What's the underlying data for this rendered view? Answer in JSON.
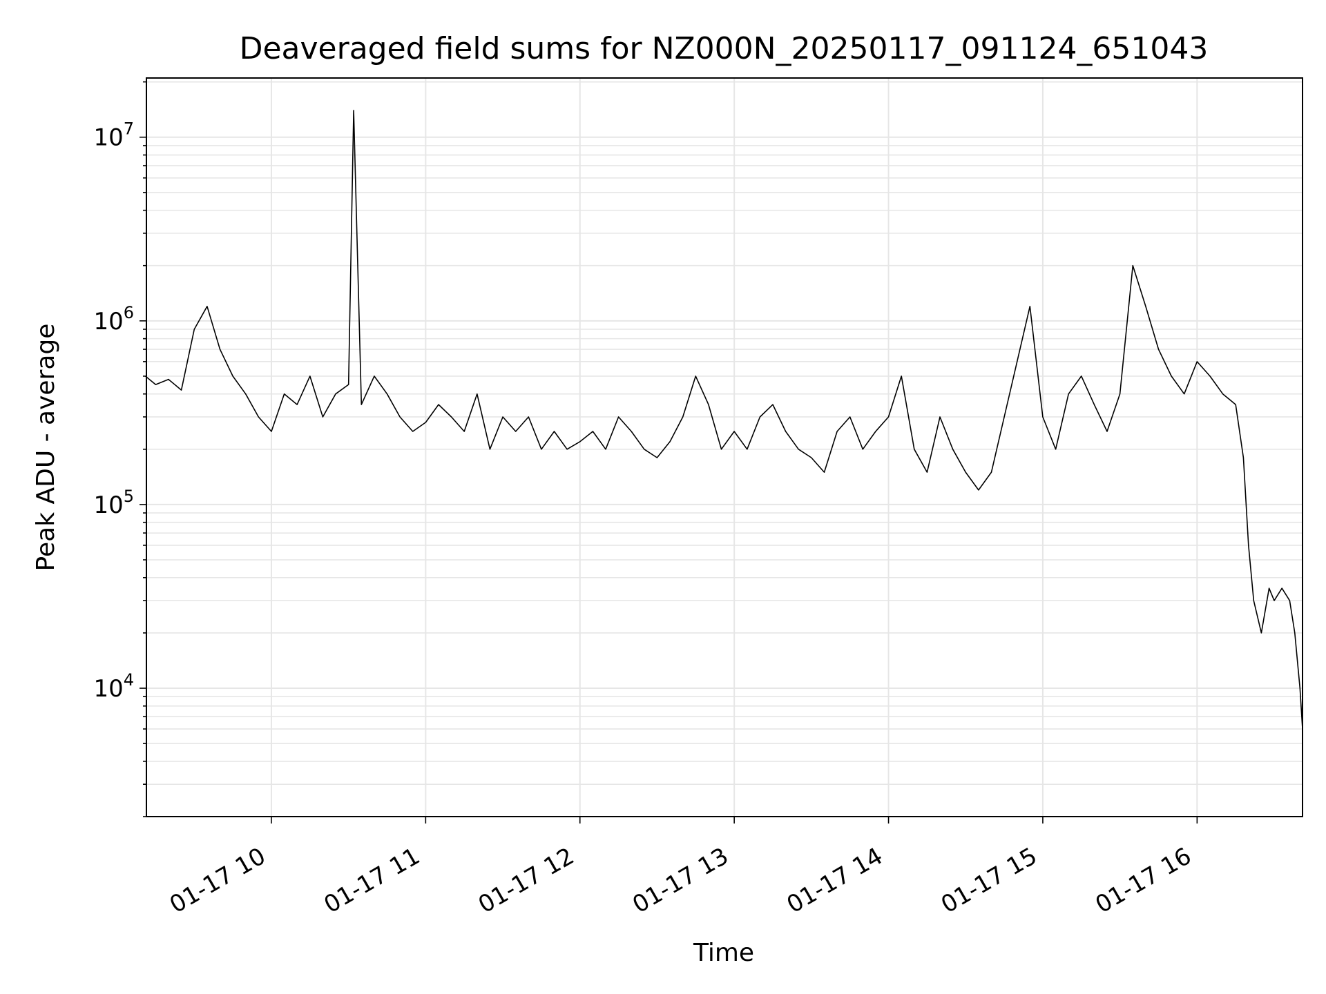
{
  "chart_data": {
    "type": "line",
    "title": "Deaveraged field sums for NZ000N_20250117_091124_651043",
    "xlabel": "Time",
    "ylabel": "Peak ADU - average",
    "yscale": "log",
    "ylim": [
      2000,
      21000000
    ],
    "xlim": [
      "2025-01-17T09:11:24",
      "2025-01-17T16:41:00"
    ],
    "grid": true,
    "x_ticks": [
      {
        "label": "01-17 10",
        "time": "2025-01-17T10:00:00"
      },
      {
        "label": "01-17 11",
        "time": "2025-01-17T11:00:00"
      },
      {
        "label": "01-17 12",
        "time": "2025-01-17T12:00:00"
      },
      {
        "label": "01-17 13",
        "time": "2025-01-17T13:00:00"
      },
      {
        "label": "01-17 14",
        "time": "2025-01-17T14:00:00"
      },
      {
        "label": "01-17 15",
        "time": "2025-01-17T15:00:00"
      },
      {
        "label": "01-17 16",
        "time": "2025-01-17T16:00:00"
      }
    ],
    "y_ticks": [
      {
        "base": "10",
        "exp": "4",
        "value": 10000
      },
      {
        "base": "10",
        "exp": "5",
        "value": 100000
      },
      {
        "base": "10",
        "exp": "6",
        "value": 1000000
      },
      {
        "base": "10",
        "exp": "7",
        "value": 10000000
      }
    ],
    "series": [
      {
        "color": "#000000",
        "points": [
          [
            "09:11",
            500000
          ],
          [
            "09:15",
            450000
          ],
          [
            "09:20",
            480000
          ],
          [
            "09:25",
            420000
          ],
          [
            "09:30",
            900000
          ],
          [
            "09:35",
            1200000
          ],
          [
            "09:40",
            700000
          ],
          [
            "09:45",
            500000
          ],
          [
            "09:50",
            400000
          ],
          [
            "09:55",
            300000
          ],
          [
            "10:00",
            250000
          ],
          [
            "10:05",
            400000
          ],
          [
            "10:10",
            350000
          ],
          [
            "10:15",
            500000
          ],
          [
            "10:20",
            300000
          ],
          [
            "10:25",
            400000
          ],
          [
            "10:30",
            450000
          ],
          [
            "10:32",
            14000000
          ],
          [
            "10:35",
            350000
          ],
          [
            "10:40",
            500000
          ],
          [
            "10:45",
            400000
          ],
          [
            "10:50",
            300000
          ],
          [
            "10:55",
            250000
          ],
          [
            "11:00",
            280000
          ],
          [
            "11:05",
            350000
          ],
          [
            "11:10",
            300000
          ],
          [
            "11:15",
            250000
          ],
          [
            "11:20",
            400000
          ],
          [
            "11:25",
            200000
          ],
          [
            "11:30",
            300000
          ],
          [
            "11:35",
            250000
          ],
          [
            "11:40",
            300000
          ],
          [
            "11:45",
            200000
          ],
          [
            "11:50",
            250000
          ],
          [
            "11:55",
            200000
          ],
          [
            "12:00",
            220000
          ],
          [
            "12:05",
            250000
          ],
          [
            "12:10",
            200000
          ],
          [
            "12:15",
            300000
          ],
          [
            "12:20",
            250000
          ],
          [
            "12:25",
            200000
          ],
          [
            "12:30",
            180000
          ],
          [
            "12:35",
            220000
          ],
          [
            "12:40",
            300000
          ],
          [
            "12:45",
            500000
          ],
          [
            "12:50",
            350000
          ],
          [
            "12:55",
            200000
          ],
          [
            "13:00",
            250000
          ],
          [
            "13:05",
            200000
          ],
          [
            "13:10",
            300000
          ],
          [
            "13:15",
            350000
          ],
          [
            "13:20",
            250000
          ],
          [
            "13:25",
            200000
          ],
          [
            "13:30",
            180000
          ],
          [
            "13:35",
            150000
          ],
          [
            "13:40",
            250000
          ],
          [
            "13:45",
            300000
          ],
          [
            "13:50",
            200000
          ],
          [
            "13:55",
            250000
          ],
          [
            "14:00",
            300000
          ],
          [
            "14:05",
            500000
          ],
          [
            "14:10",
            200000
          ],
          [
            "14:15",
            150000
          ],
          [
            "14:20",
            300000
          ],
          [
            "14:25",
            200000
          ],
          [
            "14:30",
            150000
          ],
          [
            "14:35",
            120000
          ],
          [
            "14:40",
            150000
          ],
          [
            "14:45",
            300000
          ],
          [
            "14:50",
            600000
          ],
          [
            "14:55",
            1200000
          ],
          [
            "15:00",
            300000
          ],
          [
            "15:05",
            200000
          ],
          [
            "15:10",
            400000
          ],
          [
            "15:15",
            500000
          ],
          [
            "15:20",
            350000
          ],
          [
            "15:25",
            250000
          ],
          [
            "15:30",
            400000
          ],
          [
            "15:35",
            2000000
          ],
          [
            "15:40",
            1200000
          ],
          [
            "15:45",
            700000
          ],
          [
            "15:50",
            500000
          ],
          [
            "15:55",
            400000
          ],
          [
            "16:00",
            600000
          ],
          [
            "16:05",
            500000
          ],
          [
            "16:10",
            400000
          ],
          [
            "16:15",
            350000
          ],
          [
            "16:18",
            180000
          ],
          [
            "16:20",
            60000
          ],
          [
            "16:22",
            30000
          ],
          [
            "16:25",
            20000
          ],
          [
            "16:28",
            35000
          ],
          [
            "16:30",
            30000
          ],
          [
            "16:33",
            35000
          ],
          [
            "16:36",
            30000
          ],
          [
            "16:38",
            20000
          ],
          [
            "16:40",
            10000
          ],
          [
            "16:41",
            6000
          ]
        ]
      }
    ]
  }
}
